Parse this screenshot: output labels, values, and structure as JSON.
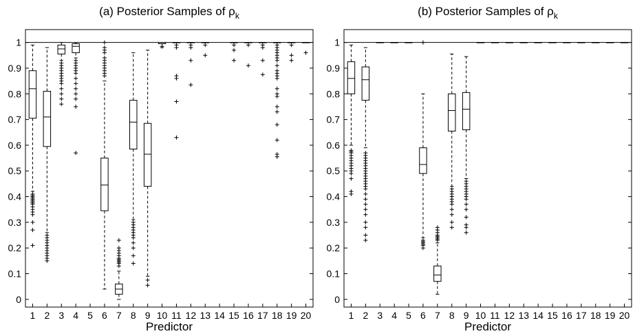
{
  "chart_data": [
    {
      "type": "box",
      "title": "(a) Posterior Samples of ρ",
      "title_sub": "k",
      "xlabel": "Predictor",
      "ylabel": "",
      "ylim": [
        -0.03,
        1.05
      ],
      "yticks": [
        0,
        0.1,
        0.2,
        0.3,
        0.4,
        0.5,
        0.6,
        0.7,
        0.8,
        0.9,
        1
      ],
      "categories": [
        "1",
        "2",
        "3",
        "4",
        "5",
        "6",
        "7",
        "8",
        "9",
        "10",
        "11",
        "12",
        "13",
        "14",
        "15",
        "16",
        "17",
        "18",
        "19",
        "20"
      ],
      "reference_line": 1,
      "boxes": [
        {
          "x": 1,
          "q1": 0.705,
          "median": 0.82,
          "q3": 0.89,
          "whisker_low": 0.42,
          "whisker_high": 0.99,
          "outliers": [
            0.21,
            0.27,
            0.3,
            0.33,
            0.34,
            0.35,
            0.36,
            0.37,
            0.375,
            0.38,
            0.385,
            0.39,
            0.395,
            0.4,
            0.405,
            0.41
          ]
        },
        {
          "x": 2,
          "q1": 0.595,
          "median": 0.71,
          "q3": 0.81,
          "whisker_low": 0.26,
          "whisker_high": 0.98,
          "outliers": [
            0.15,
            0.16,
            0.17,
            0.18,
            0.19,
            0.2,
            0.21,
            0.22,
            0.23,
            0.24,
            0.25
          ]
        },
        {
          "x": 3,
          "q1": 0.955,
          "median": 0.975,
          "q3": 0.99,
          "whisker_low": 0.93,
          "whisker_high": 1.0,
          "outliers": [
            0.76,
            0.78,
            0.8,
            0.82,
            0.84,
            0.85,
            0.86,
            0.87,
            0.88,
            0.89,
            0.9,
            0.91,
            0.92
          ]
        },
        {
          "x": 4,
          "q1": 0.96,
          "median": 0.985,
          "q3": 0.995,
          "whisker_low": 0.94,
          "whisker_high": 1.0,
          "outliers": [
            0.57,
            0.75,
            0.78,
            0.8,
            0.82,
            0.84,
            0.86,
            0.88,
            0.89,
            0.9,
            0.91,
            0.92,
            0.93
          ]
        },
        {
          "x": 6,
          "q1": 0.345,
          "median": 0.445,
          "q3": 0.55,
          "whisker_low": 0.04,
          "whisker_high": 0.85,
          "outliers": [
            0.87,
            0.88,
            0.89,
            0.9,
            0.91,
            0.92,
            0.93,
            0.94,
            0.96,
            0.97,
            0.98,
            1.0
          ]
        },
        {
          "x": 7,
          "q1": 0.02,
          "median": 0.04,
          "q3": 0.06,
          "whisker_low": 0.0,
          "whisker_high": 0.11,
          "outliers": [
            0.13,
            0.14,
            0.145,
            0.15,
            0.155,
            0.16,
            0.17,
            0.18,
            0.19,
            0.2,
            0.23
          ]
        },
        {
          "x": 8,
          "q1": 0.585,
          "median": 0.69,
          "q3": 0.775,
          "whisker_low": 0.31,
          "whisker_high": 0.96,
          "outliers": [
            0.14,
            0.17,
            0.2,
            0.22,
            0.24,
            0.25,
            0.26,
            0.27,
            0.28,
            0.29,
            0.3
          ]
        },
        {
          "x": 9,
          "q1": 0.44,
          "median": 0.565,
          "q3": 0.685,
          "whisker_low": 0.09,
          "whisker_high": 0.97,
          "outliers": [
            0.055,
            0.075
          ]
        },
        {
          "x": 10,
          "q1": 0.995,
          "median": 1.0,
          "q3": 1.0,
          "whisker_low": 0.98,
          "whisker_high": 1.0,
          "outliers": [
            0.985
          ]
        },
        {
          "x": 11,
          "q1": 1.0,
          "median": 1.0,
          "q3": 1.0,
          "whisker_low": 1.0,
          "whisker_high": 1.0,
          "outliers": [
            0.63,
            0.77,
            0.86,
            0.87,
            0.98,
            0.99
          ]
        },
        {
          "x": 12,
          "q1": 1.0,
          "median": 1.0,
          "q3": 1.0,
          "whisker_low": 1.0,
          "whisker_high": 1.0,
          "outliers": [
            0.835,
            0.93,
            0.98,
            0.99
          ]
        },
        {
          "x": 13,
          "q1": 1.0,
          "median": 1.0,
          "q3": 1.0,
          "whisker_low": 1.0,
          "whisker_high": 1.0,
          "outliers": [
            0.95,
            0.99
          ]
        },
        {
          "x": 15,
          "q1": 1.0,
          "median": 1.0,
          "q3": 1.0,
          "whisker_low": 1.0,
          "whisker_high": 1.0,
          "outliers": [
            0.93,
            0.97,
            0.99
          ]
        },
        {
          "x": 16,
          "q1": 1.0,
          "median": 1.0,
          "q3": 1.0,
          "whisker_low": 1.0,
          "whisker_high": 1.0,
          "outliers": [
            0.91,
            0.99
          ]
        },
        {
          "x": 17,
          "q1": 1.0,
          "median": 1.0,
          "q3": 1.0,
          "whisker_low": 1.0,
          "whisker_high": 1.0,
          "outliers": [
            0.875,
            0.93,
            0.98,
            0.99
          ]
        },
        {
          "x": 18,
          "q1": 1.0,
          "median": 1.0,
          "q3": 1.0,
          "whisker_low": 1.0,
          "whisker_high": 1.0,
          "outliers": [
            0.555,
            0.565,
            0.62,
            0.68,
            0.73,
            0.75,
            0.79,
            0.8,
            0.82,
            0.86,
            0.87,
            0.88,
            0.89,
            0.91,
            0.93,
            0.94,
            0.95,
            0.96,
            0.97,
            0.98,
            0.99
          ]
        },
        {
          "x": 19,
          "q1": 1.0,
          "median": 1.0,
          "q3": 1.0,
          "whisker_low": 1.0,
          "whisker_high": 1.0,
          "outliers": [
            0.93,
            0.95,
            0.99
          ]
        },
        {
          "x": 20,
          "q1": 1.0,
          "median": 1.0,
          "q3": 1.0,
          "whisker_low": 1.0,
          "whisker_high": 1.0,
          "outliers": [
            0.96
          ]
        }
      ]
    },
    {
      "type": "box",
      "title": "(b) Posterior Samples of ρ",
      "title_sub": "k",
      "xlabel": "Predictor",
      "ylabel": "",
      "ylim": [
        -0.03,
        1.05
      ],
      "yticks": [
        0,
        0.1,
        0.2,
        0.3,
        0.4,
        0.5,
        0.6,
        0.7,
        0.8,
        0.9,
        1
      ],
      "categories": [
        "1",
        "2",
        "3",
        "4",
        "5",
        "6",
        "7",
        "8",
        "9",
        "10",
        "11",
        "12",
        "13",
        "14",
        "15",
        "16",
        "17",
        "18",
        "19",
        "20"
      ],
      "reference_line": 1,
      "boxes": [
        {
          "x": 1,
          "q1": 0.8,
          "median": 0.86,
          "q3": 0.925,
          "whisker_low": 0.6,
          "whisker_high": 0.99,
          "outliers": [
            0.41,
            0.42,
            0.47,
            0.49,
            0.5,
            0.51,
            0.52,
            0.53,
            0.54,
            0.55,
            0.56,
            0.57,
            0.575,
            0.58
          ]
        },
        {
          "x": 2,
          "q1": 0.775,
          "median": 0.855,
          "q3": 0.905,
          "whisker_low": 0.59,
          "whisker_high": 0.98,
          "outliers": [
            0.23,
            0.25,
            0.28,
            0.3,
            0.33,
            0.35,
            0.37,
            0.39,
            0.41,
            0.43,
            0.44,
            0.45,
            0.46,
            0.47,
            0.48,
            0.49,
            0.5,
            0.51,
            0.52,
            0.53,
            0.54,
            0.55,
            0.56,
            0.57
          ]
        },
        {
          "x": 3,
          "q1": 1.0,
          "median": 1.0,
          "q3": 1.0,
          "whisker_low": 1.0,
          "whisker_high": 1.0,
          "outliers": []
        },
        {
          "x": 4,
          "q1": 1.0,
          "median": 1.0,
          "q3": 1.0,
          "whisker_low": 1.0,
          "whisker_high": 1.0,
          "outliers": []
        },
        {
          "x": 5,
          "q1": 1.0,
          "median": 1.0,
          "q3": 1.0,
          "whisker_low": 1.0,
          "whisker_high": 1.0,
          "outliers": []
        },
        {
          "x": 6,
          "q1": 0.49,
          "median": 0.525,
          "q3": 0.59,
          "whisker_low": 0.24,
          "whisker_high": 0.8,
          "outliers": [
            0.2,
            0.21,
            0.215,
            0.22,
            0.225,
            0.23,
            1.0
          ]
        },
        {
          "x": 7,
          "q1": 0.07,
          "median": 0.095,
          "q3": 0.13,
          "whisker_low": 0.02,
          "whisker_high": 0.22,
          "outliers": [
            0.23,
            0.235,
            0.24,
            0.245,
            0.25,
            0.26,
            0.27,
            0.28
          ]
        },
        {
          "x": 8,
          "q1": 0.655,
          "median": 0.735,
          "q3": 0.8,
          "whisker_low": 0.44,
          "whisker_high": 0.955,
          "outliers": [
            0.28,
            0.3,
            0.33,
            0.35,
            0.37,
            0.38,
            0.39,
            0.4,
            0.41,
            0.42,
            0.43
          ]
        },
        {
          "x": 9,
          "q1": 0.66,
          "median": 0.74,
          "q3": 0.805,
          "whisker_low": 0.47,
          "whisker_high": 0.945,
          "outliers": [
            0.26,
            0.28,
            0.29,
            0.32,
            0.35,
            0.37,
            0.39,
            0.4,
            0.41,
            0.42,
            0.43,
            0.44,
            0.45,
            0.46
          ]
        },
        {
          "x": 10,
          "q1": 1.0,
          "median": 1.0,
          "q3": 1.0,
          "whisker_low": 1.0,
          "whisker_high": 1.0,
          "outliers": []
        },
        {
          "x": 11,
          "q1": 1.0,
          "median": 1.0,
          "q3": 1.0,
          "whisker_low": 1.0,
          "whisker_high": 1.0,
          "outliers": []
        },
        {
          "x": 12,
          "q1": 1.0,
          "median": 1.0,
          "q3": 1.0,
          "whisker_low": 1.0,
          "whisker_high": 1.0,
          "outliers": []
        },
        {
          "x": 13,
          "q1": 1.0,
          "median": 1.0,
          "q3": 1.0,
          "whisker_low": 1.0,
          "whisker_high": 1.0,
          "outliers": []
        },
        {
          "x": 14,
          "q1": 1.0,
          "median": 1.0,
          "q3": 1.0,
          "whisker_low": 1.0,
          "whisker_high": 1.0,
          "outliers": []
        },
        {
          "x": 15,
          "q1": 1.0,
          "median": 1.0,
          "q3": 1.0,
          "whisker_low": 1.0,
          "whisker_high": 1.0,
          "outliers": []
        },
        {
          "x": 16,
          "q1": 1.0,
          "median": 1.0,
          "q3": 1.0,
          "whisker_low": 1.0,
          "whisker_high": 1.0,
          "outliers": []
        },
        {
          "x": 17,
          "q1": 1.0,
          "median": 1.0,
          "q3": 1.0,
          "whisker_low": 1.0,
          "whisker_high": 1.0,
          "outliers": []
        },
        {
          "x": 18,
          "q1": 1.0,
          "median": 1.0,
          "q3": 1.0,
          "whisker_low": 1.0,
          "whisker_high": 1.0,
          "outliers": []
        },
        {
          "x": 19,
          "q1": 1.0,
          "median": 1.0,
          "q3": 1.0,
          "whisker_low": 1.0,
          "whisker_high": 1.0,
          "outliers": []
        },
        {
          "x": 20,
          "q1": 1.0,
          "median": 1.0,
          "q3": 1.0,
          "whisker_low": 1.0,
          "whisker_high": 1.0,
          "outliers": []
        }
      ]
    }
  ]
}
